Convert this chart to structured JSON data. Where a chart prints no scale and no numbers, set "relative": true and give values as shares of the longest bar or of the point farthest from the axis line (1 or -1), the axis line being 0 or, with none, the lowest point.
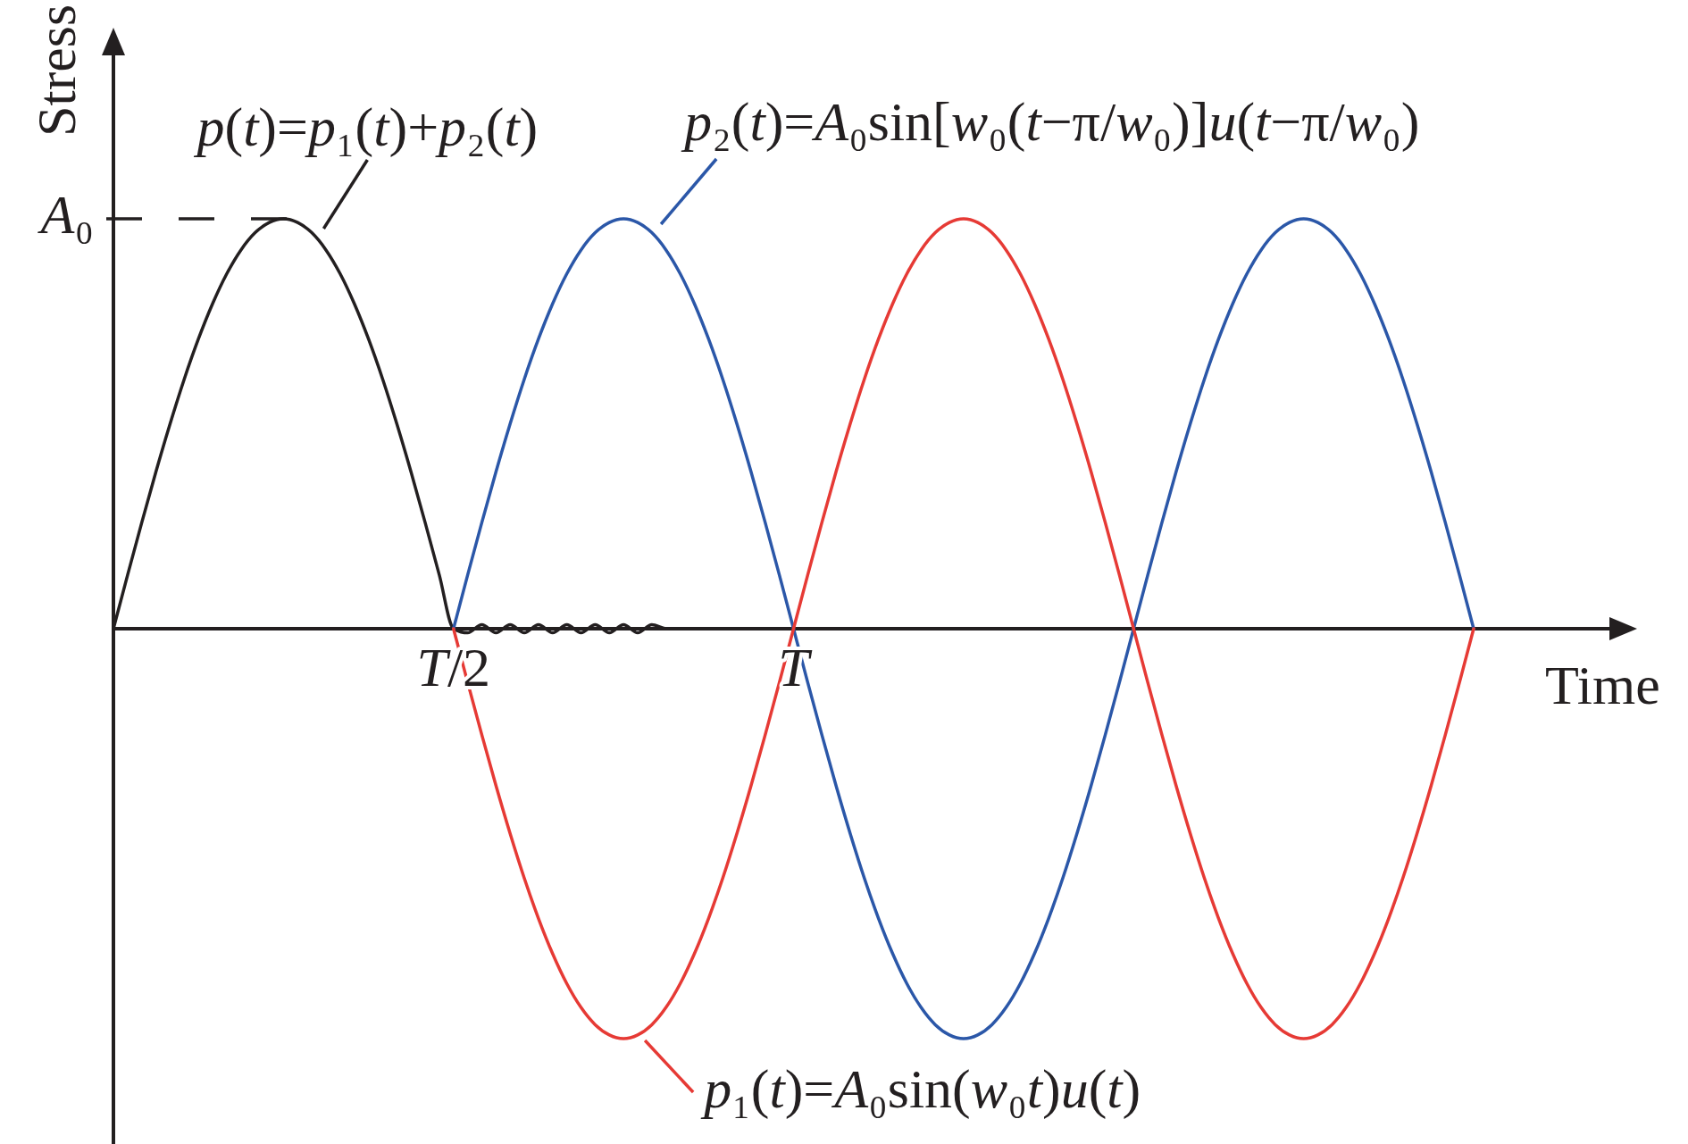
{
  "chart_data": {
    "type": "line",
    "xlabel": "Time",
    "ylabel": "Stress",
    "relative": true,
    "categories": [
      null,
      null,
      null,
      null,
      null,
      null,
      null,
      null,
      null,
      null,
      null,
      null,
      null,
      null,
      null,
      null,
      null,
      null,
      null,
      null,
      null,
      null,
      null,
      null,
      "T/2",
      null,
      null,
      null,
      null,
      null,
      null,
      null,
      null,
      null,
      null,
      null,
      null,
      null,
      null,
      null,
      null,
      null,
      null,
      null,
      null,
      null,
      null,
      null,
      "T",
      null,
      null,
      null,
      null,
      null,
      null,
      null,
      null,
      null,
      null,
      null,
      null,
      null,
      null,
      null,
      null,
      null,
      null,
      null,
      null,
      null,
      null,
      null,
      null,
      null,
      null,
      null,
      null,
      null,
      null,
      null,
      null,
      null,
      null,
      null,
      null,
      null,
      null,
      null,
      null,
      null,
      null,
      null,
      null,
      null,
      null,
      null,
      null
    ],
    "ref_lines": [
      {
        "axis": "y",
        "value": 1,
        "label": "A₀",
        "line_style": "dashed",
        "color": "#231f20"
      }
    ],
    "series": [
      {
        "name": "p(t)=p₁(t)+p₂(t)",
        "color": "#231f20",
        "values": [
          0,
          0.131,
          0.259,
          0.383,
          0.5,
          0.609,
          0.707,
          0.793,
          0.866,
          0.924,
          0.966,
          0.991,
          1,
          0.991,
          0.966,
          0.924,
          0.866,
          0.793,
          0.707,
          0.609,
          0.5,
          0.383,
          0.259,
          0.131,
          0,
          -0.01,
          0.01,
          -0.01,
          0.01,
          -0.01,
          0.01,
          -0.01,
          0.01,
          -0.01,
          0.01,
          -0.01,
          0.01,
          -0.01,
          0.01,
          0,
          0,
          0,
          0,
          0,
          0,
          0,
          0,
          0,
          0,
          0,
          0,
          0,
          0,
          0,
          0,
          0,
          0,
          0,
          0,
          0,
          0,
          0,
          0,
          0,
          0,
          0,
          0,
          0,
          0,
          0,
          0,
          0,
          0,
          0,
          0,
          0,
          0,
          0,
          0,
          0,
          0,
          0,
          0,
          0,
          0,
          0,
          0,
          0,
          0,
          0,
          0,
          0,
          0,
          0,
          0,
          0,
          0
        ]
      },
      {
        "name": "p₂(t)=A₀sin[w₀(t−π/w₀)]u(t−π/w₀)",
        "color": "#2b57a8",
        "values": [
          null,
          null,
          null,
          null,
          null,
          null,
          null,
          null,
          null,
          null,
          null,
          null,
          null,
          null,
          null,
          null,
          null,
          null,
          null,
          null,
          null,
          null,
          null,
          null,
          0,
          0.131,
          0.259,
          0.383,
          0.5,
          0.609,
          0.707,
          0.793,
          0.866,
          0.924,
          0.966,
          0.991,
          1,
          0.991,
          0.966,
          0.924,
          0.866,
          0.793,
          0.707,
          0.609,
          0.5,
          0.383,
          0.259,
          0.131,
          0,
          -0.131,
          -0.259,
          -0.383,
          -0.5,
          -0.609,
          -0.707,
          -0.793,
          -0.866,
          -0.924,
          -0.966,
          -0.991,
          -1,
          -0.991,
          -0.966,
          -0.924,
          -0.866,
          -0.793,
          -0.707,
          -0.609,
          -0.5,
          -0.383,
          -0.259,
          -0.131,
          0,
          0.131,
          0.259,
          0.383,
          0.5,
          0.609,
          0.707,
          0.793,
          0.866,
          0.924,
          0.966,
          0.991,
          1,
          0.991,
          0.966,
          0.924,
          0.866,
          0.793,
          0.707,
          0.609,
          0.5,
          0.383,
          0.259,
          0.131,
          0
        ]
      },
      {
        "name": "p₁(t)=A₀sin(w₀t)u(t)",
        "color": "#e63a35",
        "values": [
          null,
          null,
          null,
          null,
          null,
          null,
          null,
          null,
          null,
          null,
          null,
          null,
          null,
          null,
          null,
          null,
          null,
          null,
          null,
          null,
          null,
          null,
          null,
          null,
          0,
          -0.131,
          -0.259,
          -0.383,
          -0.5,
          -0.609,
          -0.707,
          -0.793,
          -0.866,
          -0.924,
          -0.966,
          -0.991,
          -1,
          -0.991,
          -0.966,
          -0.924,
          -0.866,
          -0.793,
          -0.707,
          -0.609,
          -0.5,
          -0.383,
          -0.259,
          -0.131,
          0,
          0.131,
          0.259,
          0.383,
          0.5,
          0.609,
          0.707,
          0.793,
          0.866,
          0.924,
          0.966,
          0.991,
          1,
          0.991,
          0.966,
          0.924,
          0.866,
          0.793,
          0.707,
          0.609,
          0.5,
          0.383,
          0.259,
          0.131,
          0,
          -0.131,
          -0.259,
          -0.383,
          -0.5,
          -0.609,
          -0.707,
          -0.793,
          -0.866,
          -0.924,
          -0.966,
          -0.991,
          -1,
          -0.991,
          -0.966,
          -0.924,
          -0.866,
          -0.793,
          -0.707,
          -0.609,
          -0.5,
          -0.383,
          -0.259,
          -0.131,
          0
        ]
      }
    ]
  }
}
